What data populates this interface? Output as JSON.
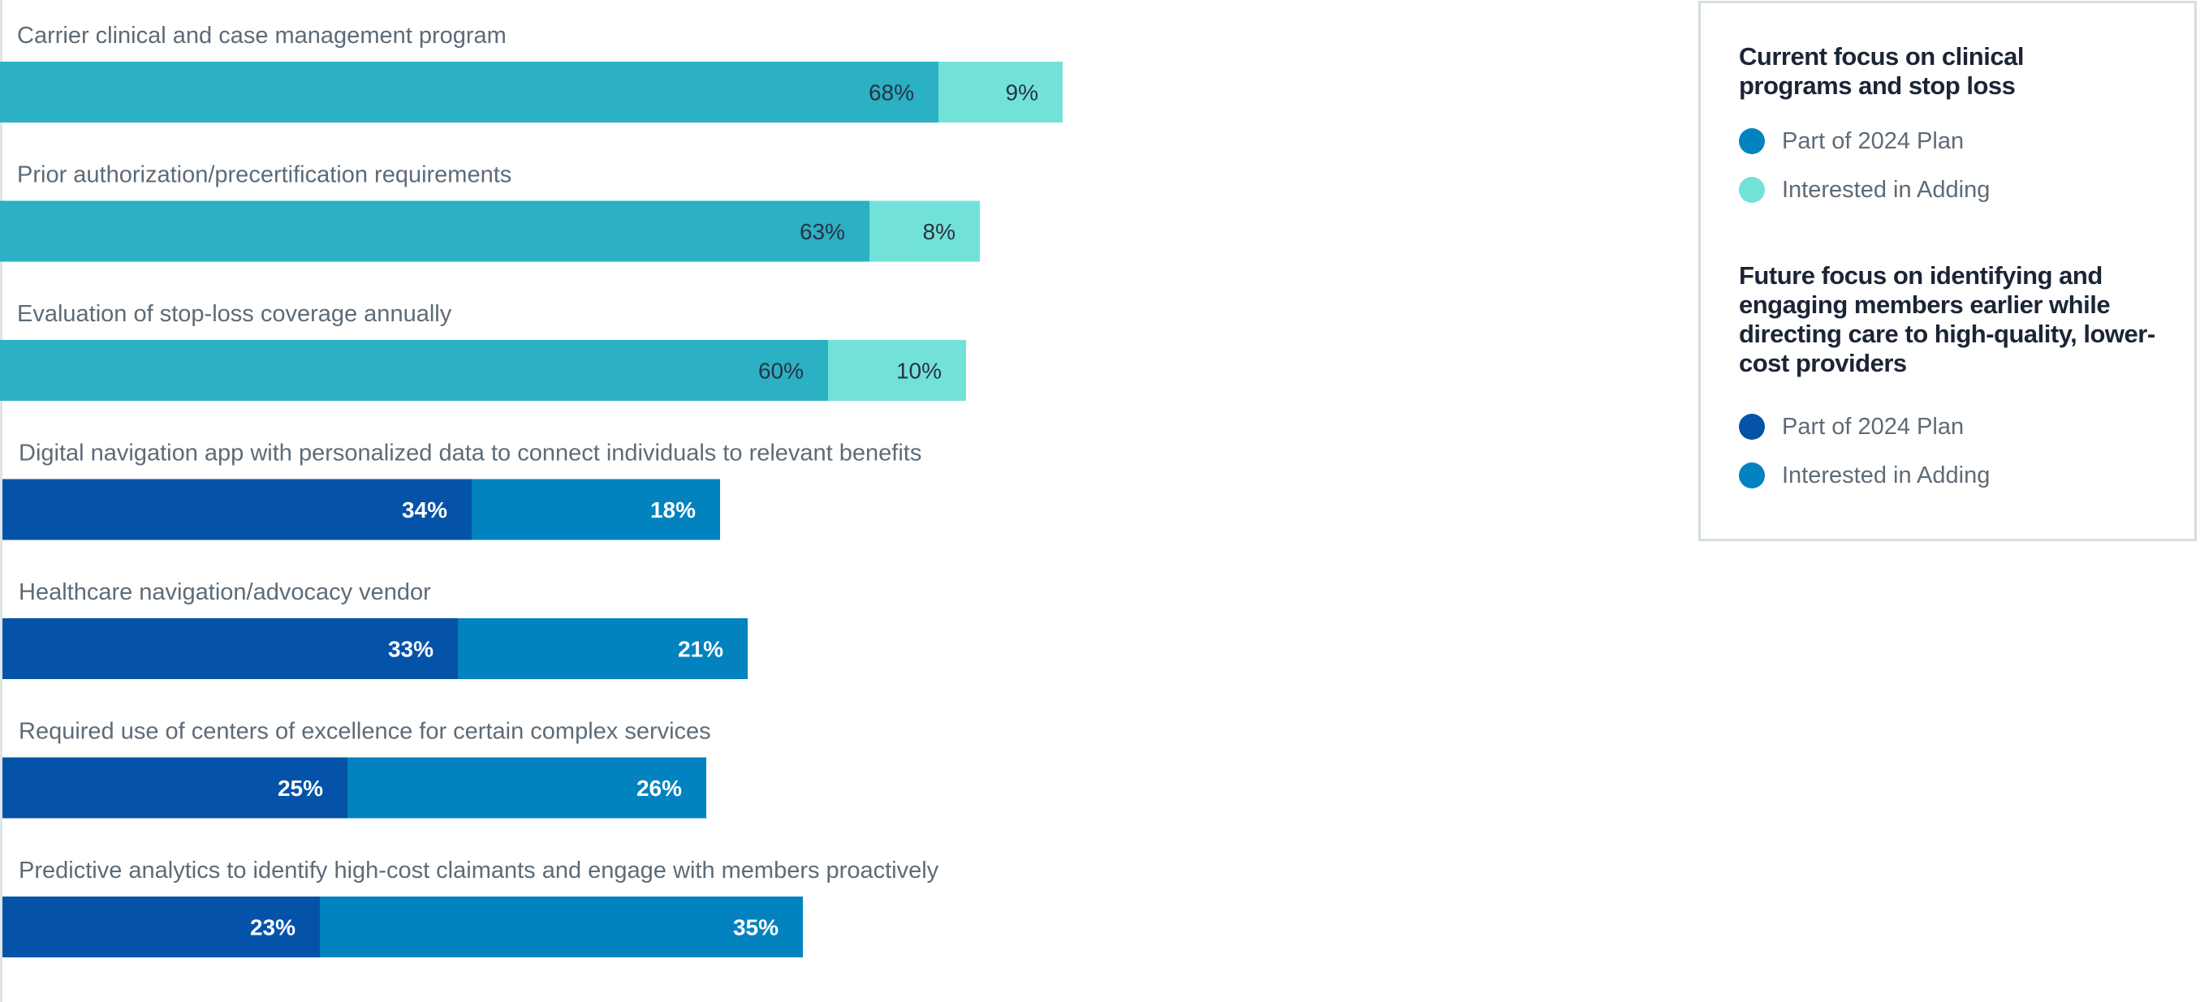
{
  "colors": {
    "current_part": "#2bb0c4",
    "current_interested": "#72e2d8",
    "future_part": "#0553a8",
    "future_interested": "#0283bf",
    "current_value_text": "#2a3340",
    "future_value_text": "#ffffff"
  },
  "legend": {
    "groups": [
      {
        "title": "Current focus on clinical programs and stop loss",
        "items": [
          {
            "label": "Part of 2024 Plan",
            "color": "#0283bf"
          },
          {
            "label": "Interested in Adding",
            "color": "#72e2d8"
          }
        ]
      },
      {
        "title": "Future focus on identifying and engaging members earlier while directing care to high-quality, lower-cost providers",
        "items": [
          {
            "label": "Part of 2024 Plan",
            "color": "#0553a8"
          },
          {
            "label": "Interested in Adding",
            "color": "#0283bf"
          }
        ]
      }
    ]
  },
  "chart_data": {
    "type": "bar",
    "orientation": "horizontal",
    "stacked": true,
    "unit": "%",
    "series": [
      {
        "name": "Part of 2024 Plan",
        "values": [
          68,
          63,
          60,
          34,
          33,
          25,
          23
        ]
      },
      {
        "name": "Interested in Adding",
        "values": [
          9,
          8,
          10,
          18,
          21,
          26,
          35
        ]
      }
    ],
    "categories": [
      "Carrier clinical and case management program",
      "Prior authorization/precertification requirements",
      "Evaluation of stop-loss coverage annually",
      "Digital navigation app with personalized data to connect individuals to relevant benefits",
      "Healthcare navigation/advocacy vendor",
      "Required use of centers of excellence for certain complex services",
      "Predictive analytics to identify high-cost claimants and engage with members proactively"
    ],
    "groups": [
      "current",
      "current",
      "current",
      "future",
      "future",
      "future",
      "future"
    ],
    "labels": [
      [
        "68%",
        "9%"
      ],
      [
        "63%",
        "8%"
      ],
      [
        "60%",
        "10%"
      ],
      [
        "34%",
        "18%"
      ],
      [
        "33%",
        "21%"
      ],
      [
        "25%",
        "26%"
      ],
      [
        "23%",
        "35%"
      ]
    ],
    "grid": false,
    "legend_position": "top-right"
  }
}
